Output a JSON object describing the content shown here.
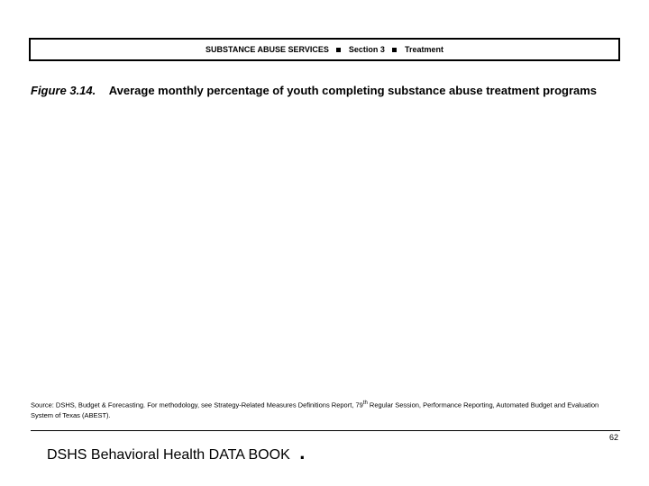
{
  "header": {
    "service": "SUBSTANCE ABUSE SERVICES",
    "section": "Section 3",
    "topic": "Treatment"
  },
  "figure": {
    "label": "Figure 3.14.",
    "title": "Average monthly percentage of youth completing substance abuse treatment programs"
  },
  "source": {
    "prefix": "Source: DSHS, Budget & Forecasting. For methodology, see Strategy-Related Measures Definitions Report,  79",
    "super": "th",
    "suffix": " Regular Session, Performance Reporting, Automated Budget and Evaluation System of Texas (ABEST)."
  },
  "footer": {
    "book": "DSHS Behavioral Health DATA BOOK",
    "page": "62"
  },
  "colors": {
    "text": "#000000",
    "background": "#ffffff",
    "border": "#000000"
  }
}
